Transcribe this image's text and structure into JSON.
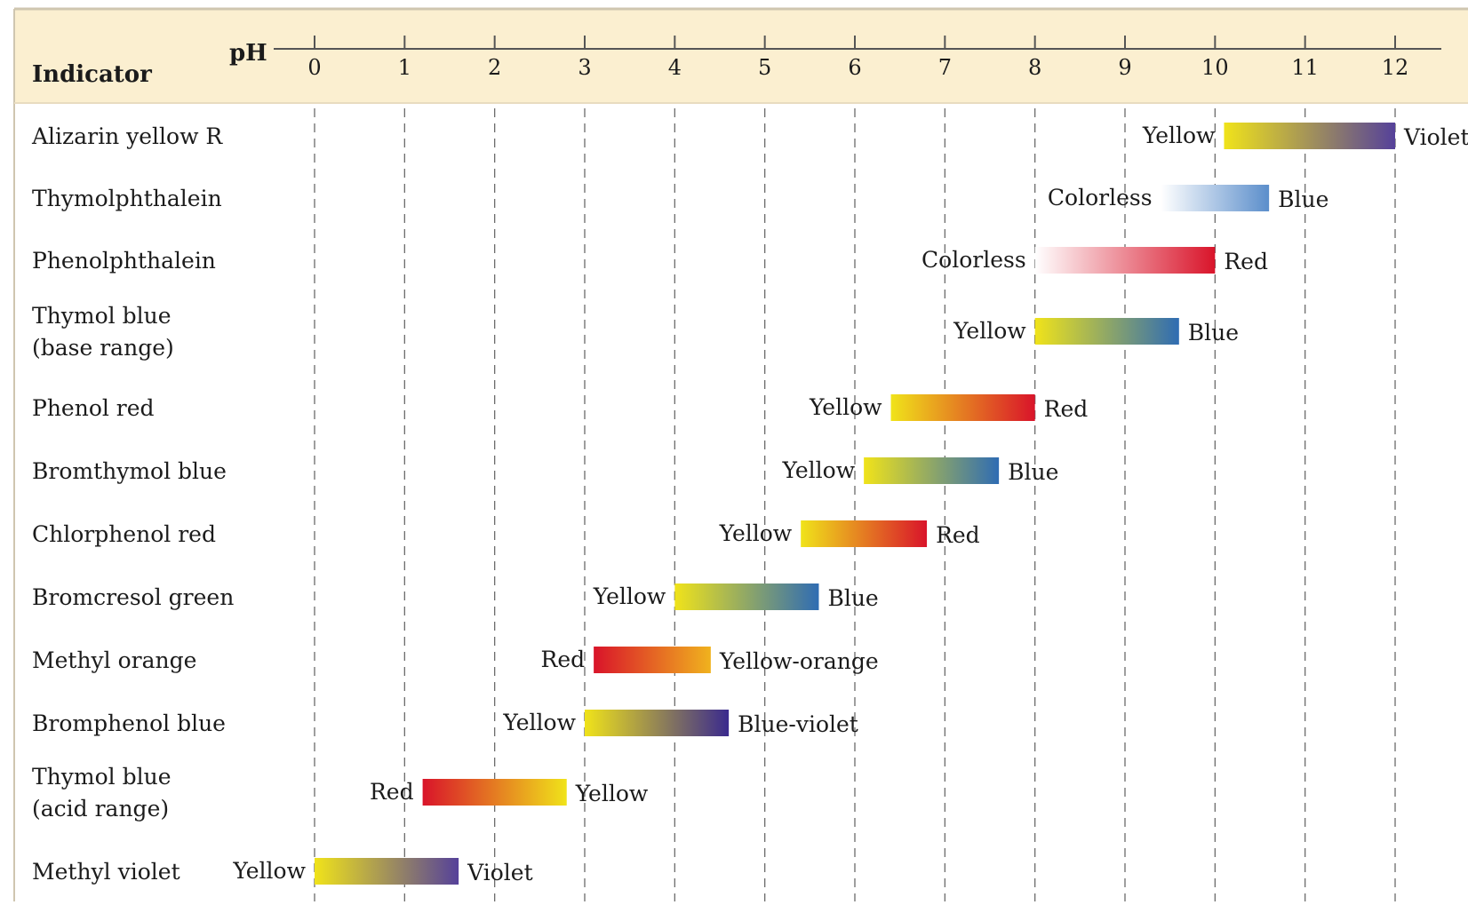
{
  "chart_data": {
    "type": "range-bar",
    "header": {
      "indicator_label": "Indicator",
      "axis_label": "pH"
    },
    "ph_ticks": [
      "0",
      "1",
      "2",
      "3",
      "4",
      "5",
      "6",
      "7",
      "8",
      "9",
      "10",
      "11",
      "12"
    ],
    "xlim": [
      0,
      12
    ],
    "grid": true,
    "colors": {
      "header_bg": "#fbefd0",
      "grid_line": "#6b6b6b",
      "text": "#1b1b1b",
      "yellow": "#f0e31a",
      "red": "#d9142a",
      "blue": "#2f6cb3",
      "light_blue": "#5b8ecb",
      "violet": "#55419a",
      "blue_violet": "#3a2a8e",
      "orange": "#f0b21e",
      "colorless": "#ffffff"
    },
    "indicators": [
      {
        "name": [
          "Alizarin yellow R"
        ],
        "low_ph": 10.1,
        "high_ph": 12.0,
        "low_label": "Yellow",
        "high_label": "Violet",
        "low_color": "#f0e31a",
        "high_color": "#55419a"
      },
      {
        "name": [
          "Thymolphthalein"
        ],
        "low_ph": 9.4,
        "high_ph": 10.6,
        "low_label": "Colorless",
        "high_label": "Blue",
        "low_color": "#ffffff",
        "high_color": "#5b8ecb"
      },
      {
        "name": [
          "Phenolphthalein"
        ],
        "low_ph": 8.0,
        "high_ph": 10.0,
        "low_label": "Colorless",
        "high_label": "Red",
        "low_color": "#ffffff",
        "high_color": "#d9142a"
      },
      {
        "name": [
          "Thymol blue",
          "(base range)"
        ],
        "low_ph": 8.0,
        "high_ph": 9.6,
        "low_label": "Yellow",
        "high_label": "Blue",
        "low_color": "#f0e31a",
        "high_color": "#2f6cb3"
      },
      {
        "name": [
          "Phenol red"
        ],
        "low_ph": 6.4,
        "high_ph": 8.0,
        "low_label": "Yellow",
        "high_label": "Red",
        "low_color": "#f0e31a",
        "high_color": "#d9142a"
      },
      {
        "name": [
          "Bromthymol blue"
        ],
        "low_ph": 6.1,
        "high_ph": 7.6,
        "low_label": "Yellow",
        "high_label": "Blue",
        "low_color": "#f0e31a",
        "high_color": "#2f6cb3"
      },
      {
        "name": [
          "Chlorphenol red"
        ],
        "low_ph": 5.4,
        "high_ph": 6.8,
        "low_label": "Yellow",
        "high_label": "Red",
        "low_color": "#f0e31a",
        "high_color": "#d9142a"
      },
      {
        "name": [
          "Bromcresol green"
        ],
        "low_ph": 4.0,
        "high_ph": 5.6,
        "low_label": "Yellow",
        "high_label": "Blue",
        "low_color": "#f0e31a",
        "high_color": "#2f6cb3"
      },
      {
        "name": [
          "Methyl orange"
        ],
        "low_ph": 3.1,
        "high_ph": 4.4,
        "low_label": "Red",
        "high_label": "Yellow-orange",
        "low_color": "#d9142a",
        "high_color": "#f0b21e"
      },
      {
        "name": [
          "Bromphenol blue"
        ],
        "low_ph": 3.0,
        "high_ph": 4.6,
        "low_label": "Yellow",
        "high_label": "Blue-violet",
        "low_color": "#f0e31a",
        "high_color": "#3a2a8e"
      },
      {
        "name": [
          "Thymol blue",
          "(acid range)"
        ],
        "low_ph": 1.2,
        "high_ph": 2.8,
        "low_label": "Red",
        "high_label": "Yellow",
        "low_color": "#d9142a",
        "high_color": "#f0e31a"
      },
      {
        "name": [
          "Methyl violet"
        ],
        "low_ph": 0.0,
        "high_ph": 1.6,
        "low_label": "Yellow",
        "high_label": "Violet",
        "low_color": "#f0e31a",
        "high_color": "#55419a"
      }
    ]
  }
}
